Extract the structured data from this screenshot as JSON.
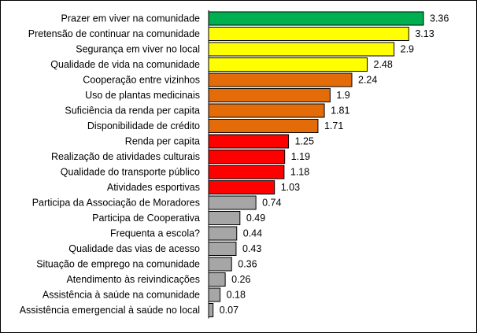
{
  "chart_data": {
    "type": "bar",
    "orientation": "horizontal",
    "title": "",
    "xlabel": "",
    "ylabel": "",
    "xlim": [
      0,
      3.36
    ],
    "grid": false,
    "legend": "none",
    "categories": [
      "Prazer em viver na comunidade",
      "Pretensão de continuar na comunidade",
      "Segurança em viver no local",
      "Qualidade de vida na comunidade",
      "Cooperação entre vizinhos",
      "Uso de plantas medicinais",
      "Suficiência da renda per capita",
      "Disponibilidade de crédito",
      "Renda per capita",
      "Realização de atividades culturais",
      "Qualidade do transporte público",
      "Atividades esportivas",
      "Participa da Associação de Moradores",
      "Participa de Cooperativa",
      "Frequenta a escola?",
      "Qualidade das vias de acesso",
      "Situação de emprego na comunidade",
      "Atendimento às reivindicações",
      "Assistência à saúde na comunidade",
      "Assistência emergencial à saúde no local"
    ],
    "values": [
      3.36,
      3.13,
      2.9,
      2.48,
      2.24,
      1.9,
      1.81,
      1.71,
      1.25,
      1.19,
      1.18,
      1.03,
      0.74,
      0.49,
      0.44,
      0.43,
      0.36,
      0.26,
      0.18,
      0.07
    ],
    "value_labels": [
      "3.36",
      "3.13",
      "2.9",
      "2.48",
      "2.24",
      "1.9",
      "1.81",
      "1.71",
      "1.25",
      "1.19",
      "1.18",
      "1.03",
      "0.74",
      "0.49",
      "0.44",
      "0.43",
      "0.36",
      "0.26",
      "0.18",
      "0.07"
    ],
    "bar_colors": [
      "#00b050",
      "#ffff00",
      "#ffff00",
      "#ffff00",
      "#e36c09",
      "#e36c09",
      "#e36c09",
      "#e36c09",
      "#ff0000",
      "#ff0000",
      "#ff0000",
      "#ff0000",
      "#a6a6a6",
      "#a6a6a6",
      "#a6a6a6",
      "#a6a6a6",
      "#a6a6a6",
      "#a6a6a6",
      "#a6a6a6",
      "#a6a6a6"
    ],
    "bar_outline_color": "#000000"
  }
}
